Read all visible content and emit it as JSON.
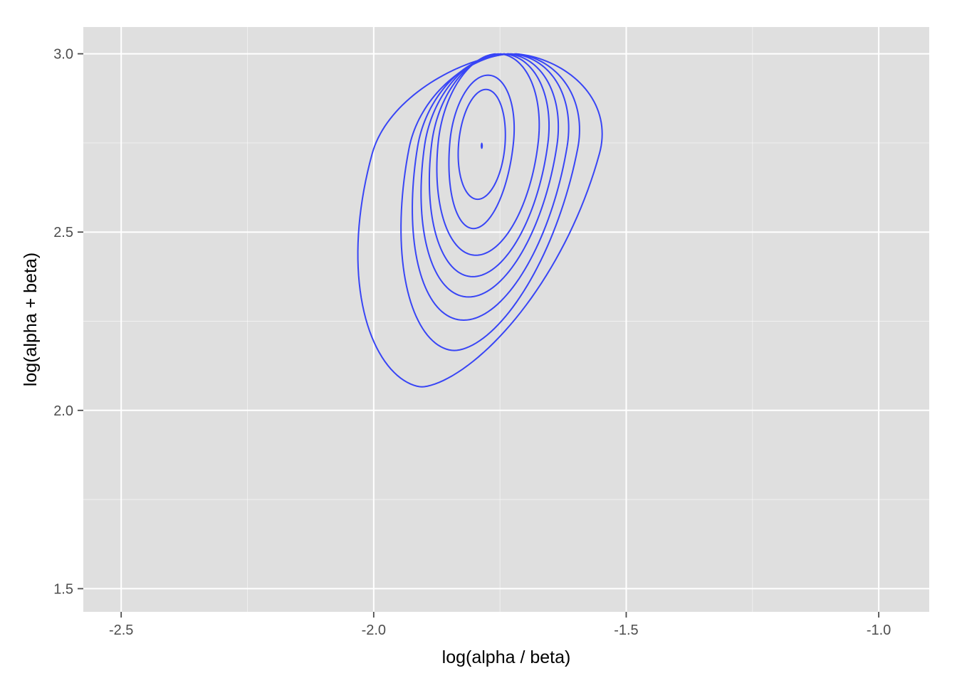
{
  "chart_data": {
    "type": "contour",
    "xlabel": "log(alpha / beta)",
    "ylabel": "log(alpha + beta)",
    "xlim": [
      -2.575,
      -0.9
    ],
    "ylim": [
      1.435,
      3.075
    ],
    "x_ticks": [
      -2.5,
      -2.0,
      -1.5,
      -1.0
    ],
    "x_tick_labels": [
      "-2.5",
      "-2.0",
      "-1.5",
      "-1.0"
    ],
    "y_ticks": [
      1.5,
      2.0,
      2.5,
      3.0
    ],
    "y_tick_labels": [
      "1.5",
      "2.0",
      "2.5",
      "3.0"
    ],
    "x_minor_ticks": [
      -2.25,
      -1.75,
      -1.25
    ],
    "y_minor_ticks": [
      1.75,
      2.25,
      2.75
    ],
    "grid": true,
    "colors": {
      "panel": "#dfdfdf",
      "grid": "#ffffff",
      "contour": "#3845f5"
    },
    "mode": {
      "x": -1.786,
      "y": 2.742
    },
    "contours": [
      {
        "cx": -1.786,
        "cy": 2.745,
        "rx": 0.046,
        "top": 2.9,
        "bottom": 2.592,
        "skew": 0.016,
        "k": 1.0
      },
      {
        "cx": -1.786,
        "cy": 2.755,
        "rx": 0.063,
        "top": 2.94,
        "bottom": 2.51,
        "skew": 0.02,
        "k": 1.0
      },
      {
        "cx": -1.773,
        "cy": 2.755,
        "rx": 0.099,
        "top": 3.0,
        "bottom": 2.435,
        "skew": 0.023,
        "k": 1.0
      },
      {
        "cx": -1.77,
        "cy": 2.75,
        "rx": 0.115,
        "top": 3.0,
        "bottom": 2.375,
        "skew": 0.027,
        "k": 1.0
      },
      {
        "cx": -1.768,
        "cy": 2.745,
        "rx": 0.131,
        "top": 3.0,
        "bottom": 2.318,
        "skew": 0.031,
        "k": 1.0
      },
      {
        "cx": -1.765,
        "cy": 2.74,
        "rx": 0.148,
        "top": 3.0,
        "bottom": 2.253,
        "skew": 0.035,
        "k": 1.0
      },
      {
        "cx": -1.763,
        "cy": 2.735,
        "rx": 0.167,
        "top": 3.0,
        "bottom": 2.168,
        "skew": 0.041,
        "k": 1.08
      },
      {
        "cx": -1.778,
        "cy": 2.72,
        "rx": 0.225,
        "top": 3.0,
        "bottom": 2.066,
        "skew": 0.058,
        "k": 1.2
      }
    ]
  }
}
